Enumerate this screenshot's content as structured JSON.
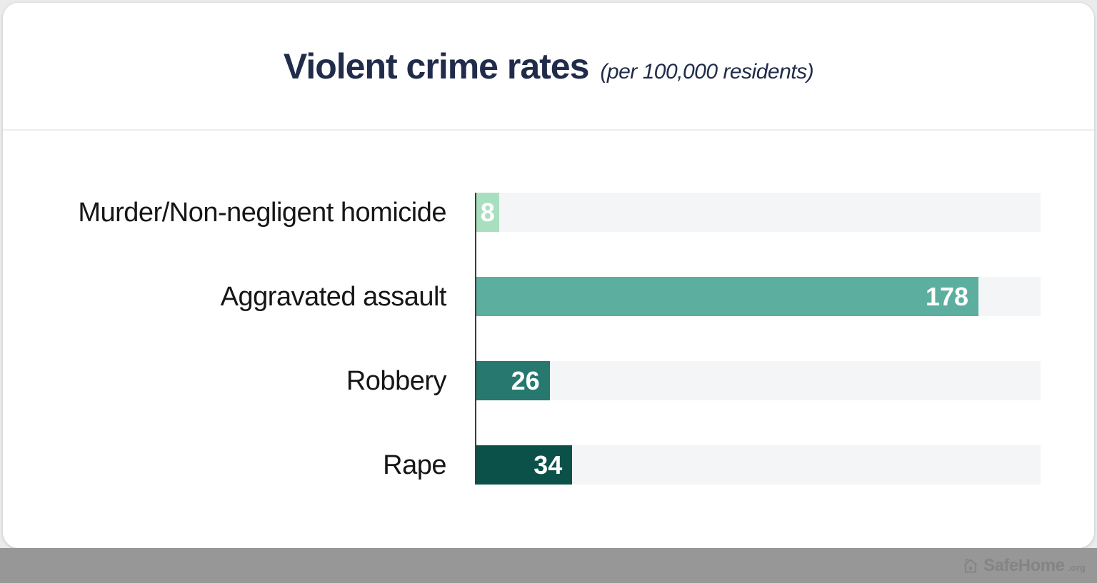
{
  "chart_data": {
    "type": "bar",
    "orientation": "horizontal",
    "title": "Violent crime rates",
    "subtitle": "(per 100,000 residents)",
    "categories": [
      "Murder/Non-negligent homicide",
      "Aggravated assault",
      "Robbery",
      "Rape"
    ],
    "values": [
      8,
      178,
      26,
      34
    ],
    "xlim": [
      0,
      200
    ],
    "grid": false,
    "legend": "none",
    "bar_colors": [
      "#a8e0bf",
      "#5cae9e",
      "#27786f",
      "#0c5149"
    ],
    "value_label_color": "#ffffff",
    "track_color": "#f4f5f6",
    "title_color": "#202c49"
  },
  "watermark": {
    "brand": "SafeHome",
    "tld": ".org",
    "icon": "house-icon"
  },
  "colors": {
    "band_gray": "#979797",
    "page_gray": "#ebebeb",
    "card_white": "#ffffff",
    "axis_dark": "#3c3c3c"
  }
}
